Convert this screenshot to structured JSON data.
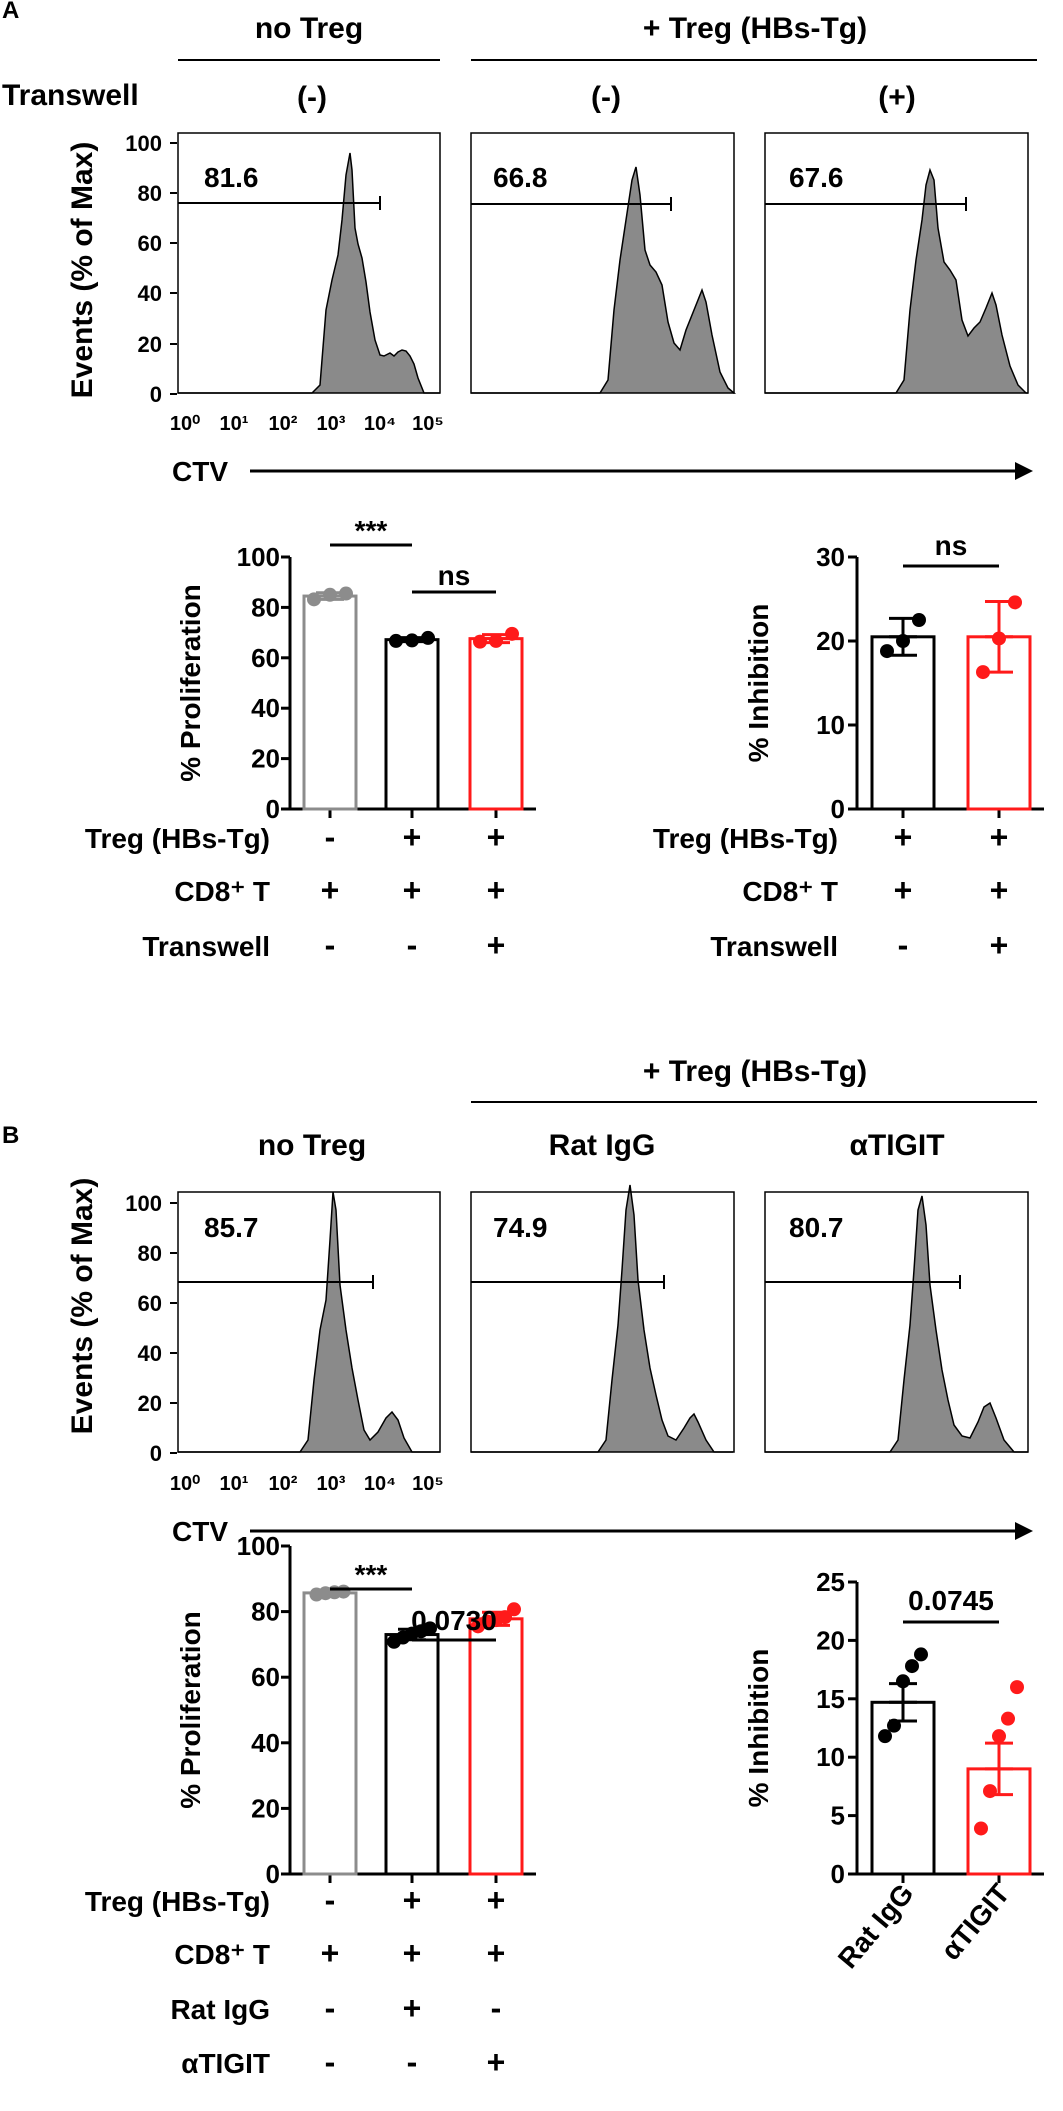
{
  "colors": {
    "gray": "#8c8c8c",
    "black": "#000000",
    "red": "#ff1a1a",
    "hist_fill": "#8a8a8a"
  },
  "panel_a": {
    "label": "A",
    "group_no_treg": "no Treg",
    "group_treg": "+ Treg (HBs-Tg)",
    "transwell_label": "Transwell",
    "transwell_cols": [
      "(-)",
      "(-)",
      "(+)"
    ],
    "hist_values": [
      "81.6",
      "66.8",
      "67.6"
    ],
    "y_axis_label": "Events (% of Max)",
    "y_ticks": [
      "0",
      "20",
      "40",
      "60",
      "80",
      "100"
    ],
    "x_ticks": [
      "10⁰",
      "10¹",
      "10²",
      "10³",
      "10⁴",
      "10⁵"
    ],
    "x_axis_label": "CTV"
  },
  "panel_b": {
    "label": "B",
    "group_treg": "+ Treg (HBs-Tg)",
    "col_titles": [
      "no Treg",
      "Rat IgG",
      "αTIGIT"
    ],
    "hist_values": [
      "85.7",
      "74.9",
      "80.7"
    ],
    "y_axis_label": "Events (% of Max)",
    "y_ticks": [
      "0",
      "20",
      "40",
      "60",
      "80",
      "100"
    ],
    "x_ticks": [
      "10⁰",
      "10¹",
      "10²",
      "10³",
      "10⁴",
      "10⁵"
    ],
    "x_axis_label": "CTV"
  },
  "chart_data": [
    {
      "type": "bar",
      "id": "A-proliferation",
      "ylabel": "% Proliferation",
      "ylim": [
        0,
        100
      ],
      "yticks": [
        0,
        20,
        40,
        60,
        80,
        100
      ],
      "categories": [
        "no Treg",
        "Treg",
        "Treg + Transwell"
      ],
      "values": [
        84.5,
        67.2,
        67.6
      ],
      "errors": [
        1.3,
        0.8,
        1.6
      ],
      "points": [
        [
          83.2,
          85.0,
          85.5
        ],
        [
          66.7,
          66.9,
          67.9
        ],
        [
          66.4,
          66.7,
          69.5
        ]
      ],
      "bar_colors": [
        "gray",
        "black",
        "red"
      ],
      "sig": [
        {
          "label": "***"
        },
        {
          "label": "ns"
        }
      ],
      "cond_rows": [
        {
          "label": "Treg (HBs-Tg)",
          "values": [
            "-",
            "+",
            "+"
          ]
        },
        {
          "label": "CD8⁺ T",
          "values": [
            "+",
            "+",
            "+"
          ]
        },
        {
          "label": "Transwell",
          "values": [
            "-",
            "-",
            "+"
          ]
        }
      ]
    },
    {
      "type": "bar",
      "id": "A-inhibition",
      "ylabel": "% Inhibition",
      "ylim": [
        0,
        30
      ],
      "yticks": [
        0,
        10,
        20,
        30
      ],
      "categories": [
        "Treg",
        "Treg + Transwell"
      ],
      "values": [
        20.5,
        20.5
      ],
      "errors": [
        2.2,
        4.2
      ],
      "points": [
        [
          18.8,
          20.0,
          22.5
        ],
        [
          16.3,
          20.3,
          24.6
        ]
      ],
      "bar_colors": [
        "black",
        "red"
      ],
      "sig": [
        {
          "label": "ns"
        }
      ],
      "cond_rows": [
        {
          "label": "Treg (HBs-Tg)",
          "values": [
            "+",
            "+"
          ]
        },
        {
          "label": "CD8⁺ T",
          "values": [
            "+",
            "+"
          ]
        },
        {
          "label": "Transwell",
          "values": [
            "-",
            "+"
          ]
        }
      ]
    },
    {
      "type": "bar",
      "id": "B-proliferation",
      "ylabel": "% Proliferation",
      "ylim": [
        0,
        100
      ],
      "yticks": [
        0,
        20,
        40,
        60,
        80,
        100
      ],
      "categories": [
        "no Treg",
        "Rat IgG",
        "αTIGIT"
      ],
      "values": [
        85.7,
        73.0,
        77.8
      ],
      "errors": [
        0.4,
        1.6,
        2.0
      ],
      "points": [
        [
          85.2,
          85.6,
          85.9,
          86.1
        ],
        [
          70.8,
          72.1,
          73.3,
          74.0,
          74.9
        ],
        [
          75.5,
          77.0,
          77.4,
          78.3,
          80.7
        ]
      ],
      "bar_colors": [
        "gray",
        "black",
        "red"
      ],
      "sig": [
        {
          "label": "***"
        },
        {
          "label": "0.0730"
        }
      ],
      "cond_rows": [
        {
          "label": "Treg (HBs-Tg)",
          "values": [
            "-",
            "+",
            "+"
          ]
        },
        {
          "label": "CD8⁺ T",
          "values": [
            "+",
            "+",
            "+"
          ]
        },
        {
          "label": "Rat IgG",
          "values": [
            "-",
            "+",
            "-"
          ]
        },
        {
          "label": "αTIGIT",
          "values": [
            "-",
            "-",
            "+"
          ]
        }
      ]
    },
    {
      "type": "bar",
      "id": "B-inhibition",
      "ylabel": "% Inhibition",
      "ylim": [
        0,
        25
      ],
      "yticks": [
        0,
        5,
        10,
        15,
        20,
        25
      ],
      "categories": [
        "Rat IgG",
        "αTIGIT"
      ],
      "values": [
        14.7,
        9.0
      ],
      "errors": [
        1.6,
        2.2
      ],
      "points": [
        [
          11.8,
          12.7,
          16.5,
          17.8,
          18.8
        ],
        [
          3.9,
          7.1,
          11.8,
          13.3,
          16.0
        ]
      ],
      "bar_colors": [
        "black",
        "red"
      ],
      "sig": [
        {
          "label": "0.0745"
        }
      ]
    }
  ]
}
